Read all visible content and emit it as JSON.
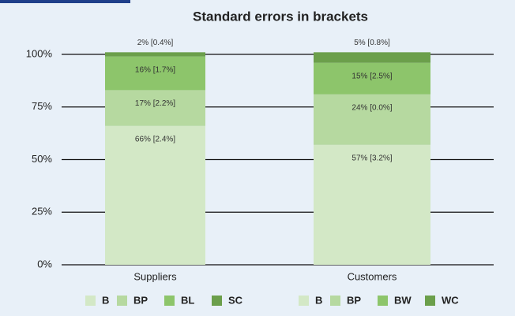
{
  "chart_data": {
    "type": "stacked_bar",
    "title": "Standard errors in brackets",
    "ylim": [
      0,
      100
    ],
    "yticks": [
      {
        "value": 0,
        "label": "0%"
      },
      {
        "value": 25,
        "label": "25%"
      },
      {
        "value": 50,
        "label": "50%"
      },
      {
        "value": 75,
        "label": "75%"
      },
      {
        "value": 100,
        "label": "100%"
      }
    ],
    "grid": true,
    "bars": [
      {
        "category": "Suppliers",
        "series": [
          {
            "name": "B",
            "color": "#d3e8c6",
            "value": 66,
            "value_label": "66% [2.4%]"
          },
          {
            "name": "BP",
            "color": "#b6d9a0",
            "value": 17,
            "value_label": "17% [2.2%]"
          },
          {
            "name": "BL",
            "color": "#8dc56b",
            "value": 16,
            "value_label": "16% [1.7%]"
          },
          {
            "name": "SC",
            "color": "#6b9f4b",
            "value": 2,
            "value_label": "2% [0.4%]"
          }
        ]
      },
      {
        "category": "Customers",
        "series": [
          {
            "name": "B",
            "color": "#d3e8c6",
            "value": 57,
            "value_label": "57% [3.2%]"
          },
          {
            "name": "BP",
            "color": "#b6d9a0",
            "value": 24,
            "value_label": "24% [0.0%]"
          },
          {
            "name": "BW",
            "color": "#8dc56b",
            "value": 15,
            "value_label": "15% [2.5%]"
          },
          {
            "name": "WC",
            "color": "#6b9f4b",
            "value": 5,
            "value_label": "5% [0.8%]"
          }
        ]
      }
    ]
  }
}
